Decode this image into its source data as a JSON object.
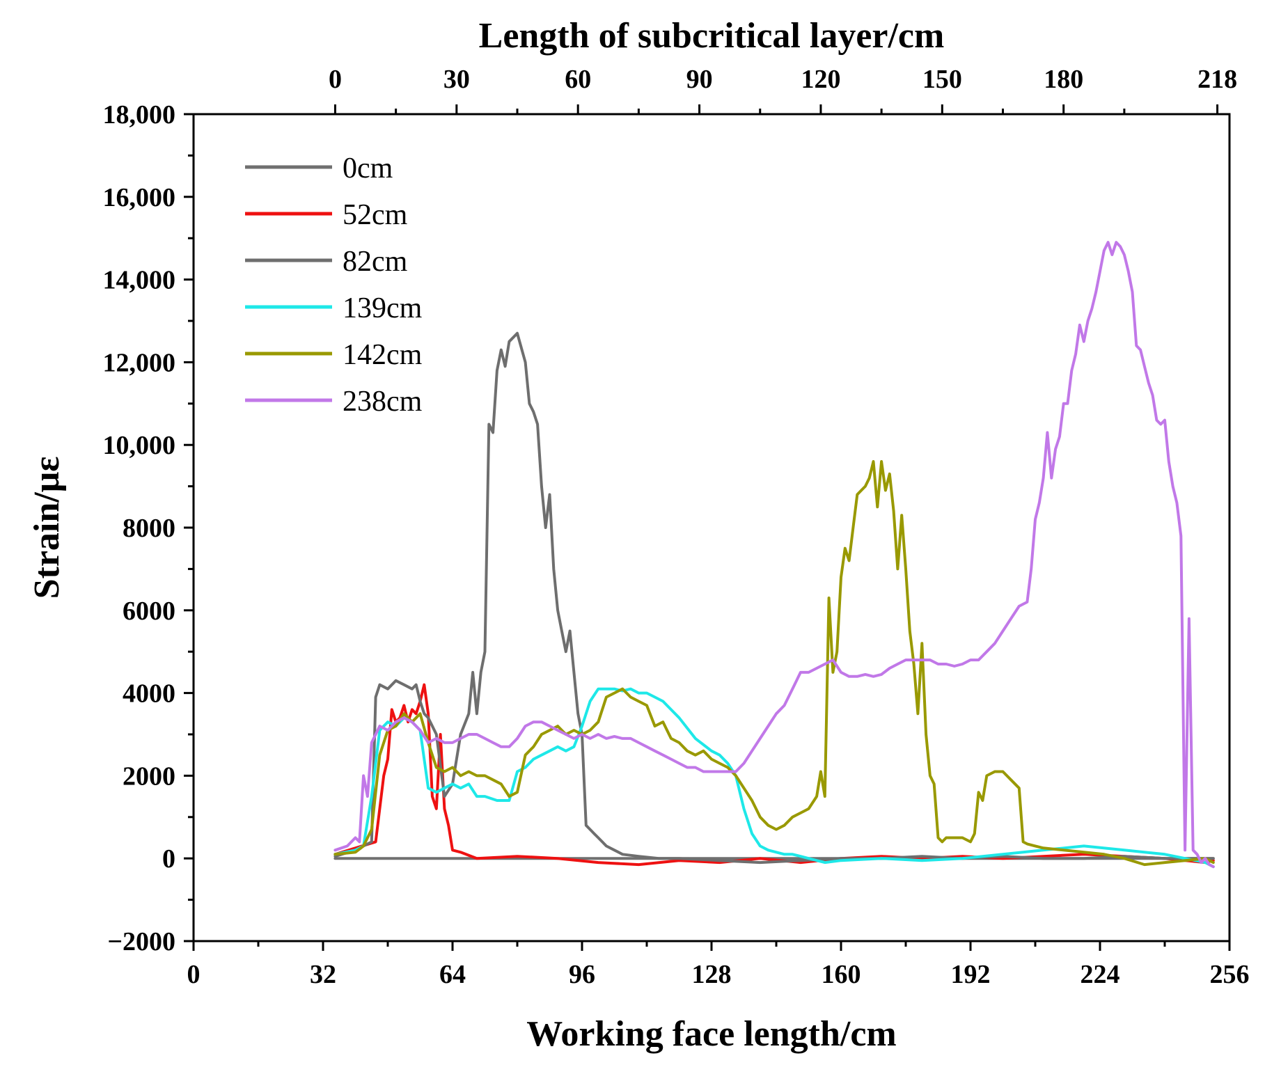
{
  "chart_data": {
    "type": "line",
    "title": "",
    "xlabel": "Working face length/cm",
    "ylabel": "Strain/με",
    "x2label": "Length of subcritical layer/cm",
    "xlim": [
      0,
      256
    ],
    "ylim": [
      -2000,
      18000
    ],
    "xticks": [
      0,
      32,
      64,
      96,
      128,
      160,
      192,
      224,
      256
    ],
    "yticks": [
      -2000,
      0,
      2000,
      4000,
      6000,
      8000,
      10000,
      12000,
      14000,
      16000,
      18000
    ],
    "ytick_labels": [
      "−2000",
      "0",
      "2000",
      "4000",
      "6000",
      "8000",
      "10,000",
      "12,000",
      "14,000",
      "16,000",
      "18,000"
    ],
    "x2ticks": [
      0,
      30,
      60,
      90,
      120,
      150,
      180,
      218
    ],
    "x2_offset": 35,
    "grid": false,
    "legend_position": "top-left",
    "series": [
      {
        "name": "0cm",
        "color": "#707070",
        "x": [
          35,
          252
        ],
        "y": [
          0,
          0
        ]
      },
      {
        "name": "52cm",
        "color": "#ee1111",
        "x": [
          35,
          40,
          45,
          47,
          48,
          49,
          50,
          51,
          52,
          53,
          54,
          55,
          56,
          57,
          58,
          59,
          60,
          61,
          62,
          63,
          64,
          66,
          70,
          80,
          90,
          100,
          110,
          120,
          130,
          140,
          150,
          160,
          170,
          180,
          190,
          200,
          210,
          220,
          230,
          240,
          250,
          252
        ],
        "y": [
          100,
          250,
          400,
          2000,
          2400,
          3600,
          3300,
          3400,
          3700,
          3300,
          3600,
          3500,
          3800,
          4200,
          3500,
          1500,
          1200,
          3000,
          1200,
          800,
          200,
          150,
          0,
          50,
          0,
          -100,
          -150,
          -50,
          -100,
          0,
          -100,
          0,
          50,
          0,
          50,
          0,
          50,
          100,
          50,
          0,
          -100,
          -50
        ]
      },
      {
        "name": "82cm",
        "color": "#6e6e6e",
        "x": [
          35,
          40,
          42,
          44,
          45,
          46,
          48,
          50,
          52,
          54,
          55,
          56,
          57,
          58,
          60,
          62,
          64,
          66,
          68,
          69,
          70,
          71,
          72,
          73,
          74,
          75,
          76,
          77,
          78,
          80,
          82,
          83,
          84,
          85,
          86,
          87,
          88,
          89,
          90,
          91,
          92,
          93,
          94,
          95,
          96,
          97,
          98,
          99,
          100,
          101,
          102,
          104,
          106,
          110,
          115,
          120,
          130,
          140,
          150,
          160,
          170,
          180,
          190,
          200,
          210,
          220,
          230,
          240,
          250,
          252
        ],
        "y": [
          50,
          200,
          300,
          400,
          3900,
          4200,
          4100,
          4300,
          4200,
          4100,
          4200,
          3800,
          3500,
          3400,
          3000,
          1500,
          1800,
          3000,
          3500,
          4500,
          3500,
          4500,
          5000,
          10500,
          10300,
          11800,
          12300,
          11900,
          12500,
          12700,
          12000,
          11000,
          10800,
          10500,
          9000,
          8000,
          8800,
          7000,
          6000,
          5500,
          5000,
          5500,
          4500,
          3500,
          3000,
          800,
          700,
          600,
          500,
          400,
          300,
          200,
          100,
          50,
          0,
          0,
          -50,
          -100,
          -50,
          0,
          0,
          50,
          0,
          50,
          0,
          0,
          50,
          0,
          0,
          0
        ]
      },
      {
        "name": "139cm",
        "color": "#1ee8e8",
        "x": [
          35,
          40,
          42,
          44,
          46,
          48,
          50,
          52,
          54,
          56,
          58,
          60,
          62,
          64,
          66,
          68,
          70,
          72,
          75,
          78,
          80,
          82,
          84,
          86,
          88,
          90,
          92,
          94,
          96,
          98,
          100,
          102,
          104,
          106,
          108,
          110,
          112,
          114,
          116,
          118,
          120,
          124,
          128,
          130,
          132,
          134,
          136,
          138,
          140,
          142,
          144,
          146,
          148,
          150,
          152,
          154,
          156,
          160,
          170,
          180,
          190,
          200,
          210,
          220,
          230,
          240,
          250,
          252
        ],
        "y": [
          100,
          200,
          300,
          1500,
          3100,
          3300,
          3200,
          3400,
          3300,
          3100,
          1700,
          1600,
          1700,
          1800,
          1700,
          1800,
          1500,
          1500,
          1400,
          1400,
          2100,
          2200,
          2400,
          2500,
          2600,
          2700,
          2600,
          2700,
          3200,
          3800,
          4100,
          4100,
          4100,
          4050,
          4100,
          4000,
          4000,
          3900,
          3800,
          3600,
          3400,
          2900,
          2600,
          2500,
          2300,
          2000,
          1200,
          600,
          300,
          200,
          150,
          100,
          100,
          50,
          0,
          -50,
          -100,
          -50,
          0,
          -50,
          0,
          100,
          200,
          300,
          200,
          100,
          -100,
          -200
        ]
      },
      {
        "name": "142cm",
        "color": "#999900",
        "x": [
          35,
          40,
          42,
          44,
          46,
          48,
          50,
          52,
          54,
          56,
          58,
          60,
          62,
          64,
          66,
          68,
          70,
          72,
          74,
          76,
          78,
          80,
          82,
          84,
          86,
          88,
          90,
          92,
          94,
          96,
          98,
          100,
          102,
          104,
          106,
          108,
          110,
          112,
          114,
          116,
          118,
          120,
          122,
          124,
          126,
          128,
          130,
          132,
          134,
          136,
          138,
          140,
          142,
          144,
          146,
          148,
          150,
          152,
          154,
          155,
          156,
          157,
          158,
          159,
          160,
          161,
          162,
          163,
          164,
          165,
          166,
          167,
          168,
          169,
          170,
          171,
          172,
          173,
          174,
          175,
          176,
          177,
          178,
          179,
          180,
          181,
          182,
          183,
          184,
          185,
          186,
          188,
          190,
          192,
          193,
          194,
          195,
          196,
          198,
          200,
          202,
          204,
          205,
          206,
          208,
          210,
          215,
          220,
          225,
          230,
          235,
          240,
          245,
          250,
          252
        ],
        "y": [
          100,
          150,
          300,
          700,
          2500,
          3100,
          3200,
          3500,
          3300,
          3500,
          2800,
          2200,
          2100,
          2200,
          2000,
          2100,
          2000,
          2000,
          1900,
          1800,
          1500,
          1600,
          2500,
          2700,
          3000,
          3100,
          3200,
          3000,
          3100,
          3000,
          3100,
          3300,
          3900,
          4000,
          4100,
          3900,
          3800,
          3700,
          3200,
          3300,
          2900,
          2800,
          2600,
          2500,
          2600,
          2400,
          2300,
          2200,
          2000,
          1700,
          1400,
          1000,
          800,
          700,
          800,
          1000,
          1100,
          1200,
          1500,
          2100,
          1500,
          6300,
          4500,
          5000,
          6800,
          7500,
          7200,
          8000,
          8800,
          8900,
          9000,
          9200,
          9600,
          8500,
          9600,
          8900,
          9300,
          8400,
          7000,
          8300,
          7000,
          5500,
          4700,
          3500,
          5200,
          3000,
          2000,
          1800,
          500,
          400,
          500,
          500,
          500,
          400,
          600,
          1600,
          1400,
          2000,
          2100,
          2100,
          1900,
          1700,
          400,
          350,
          300,
          250,
          200,
          150,
          100,
          0,
          -150,
          -100,
          -50,
          0,
          -100
        ]
      },
      {
        "name": "238cm",
        "color": "#c178e8",
        "x": [
          35,
          38,
          40,
          41,
          42,
          43,
          44,
          46,
          48,
          50,
          52,
          54,
          56,
          58,
          60,
          62,
          64,
          66,
          68,
          70,
          72,
          74,
          76,
          78,
          80,
          82,
          84,
          86,
          88,
          90,
          92,
          94,
          96,
          98,
          100,
          102,
          104,
          106,
          108,
          110,
          112,
          114,
          116,
          118,
          120,
          122,
          124,
          126,
          128,
          130,
          132,
          134,
          136,
          138,
          140,
          142,
          144,
          146,
          148,
          150,
          152,
          154,
          156,
          158,
          160,
          162,
          164,
          166,
          168,
          170,
          172,
          174,
          176,
          178,
          180,
          182,
          184,
          186,
          188,
          190,
          192,
          194,
          196,
          198,
          200,
          202,
          204,
          206,
          207,
          208,
          209,
          210,
          211,
          212,
          213,
          214,
          215,
          216,
          217,
          218,
          219,
          220,
          221,
          222,
          223,
          224,
          225,
          226,
          227,
          228,
          229,
          230,
          231,
          232,
          233,
          234,
          235,
          236,
          237,
          238,
          239,
          240,
          241,
          242,
          243,
          244,
          245,
          246,
          247,
          248,
          249,
          250,
          251,
          252
        ],
        "y": [
          200,
          300,
          500,
          400,
          2000,
          1500,
          2800,
          3200,
          3100,
          3300,
          3400,
          3300,
          3100,
          2800,
          2900,
          2800,
          2800,
          2900,
          3000,
          3000,
          2900,
          2800,
          2700,
          2700,
          2900,
          3200,
          3300,
          3300,
          3200,
          3100,
          3000,
          2900,
          3000,
          2900,
          3000,
          2900,
          2950,
          2900,
          2900,
          2800,
          2700,
          2600,
          2500,
          2400,
          2300,
          2200,
          2200,
          2100,
          2100,
          2100,
          2100,
          2100,
          2300,
          2600,
          2900,
          3200,
          3500,
          3700,
          4100,
          4500,
          4500,
          4600,
          4700,
          4800,
          4500,
          4400,
          4400,
          4450,
          4400,
          4450,
          4600,
          4700,
          4800,
          4800,
          4800,
          4800,
          4700,
          4700,
          4650,
          4700,
          4800,
          4800,
          5000,
          5200,
          5500,
          5800,
          6100,
          6200,
          7000,
          8200,
          8600,
          9200,
          10300,
          9200,
          9900,
          10200,
          11000,
          11000,
          11800,
          12200,
          12900,
          12500,
          13000,
          13300,
          13700,
          14200,
          14700,
          14900,
          14600,
          14900,
          14800,
          14600,
          14200,
          13700,
          12400,
          12300,
          11900,
          11500,
          11200,
          10600,
          10500,
          10600,
          9600,
          9000,
          8600,
          7800,
          200,
          5800,
          200,
          100,
          -100,
          0,
          -150,
          -200
        ]
      }
    ]
  }
}
